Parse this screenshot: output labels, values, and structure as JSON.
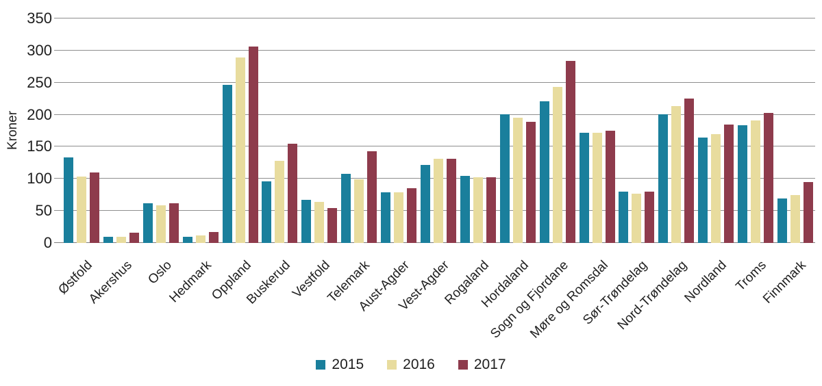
{
  "chart_data": {
    "type": "bar",
    "title": "",
    "xlabel": "",
    "ylabel": "Kroner",
    "ylim": [
      0,
      350
    ],
    "yticks": [
      0,
      50,
      100,
      150,
      200,
      250,
      300,
      350
    ],
    "grid": true,
    "legend_position": "bottom",
    "categories": [
      "Østfold",
      "Akershus",
      "Oslo",
      "Hedmark",
      "Oppland",
      "Buskerud",
      "Vestfold",
      "Telemark",
      "Aust-Agder",
      "Vest-Agder",
      "Rogaland",
      "Hordaland",
      "Sogn og Fjordane",
      "Møre og Romsdal",
      "Sør-Trøndelag",
      "Nord-Trøndelag",
      "Nordland",
      "Troms",
      "Finnmark"
    ],
    "series": [
      {
        "name": "2015",
        "color": "#1A7F9C",
        "values": [
          133,
          10,
          62,
          10,
          246,
          96,
          67,
          108,
          79,
          122,
          105,
          201,
          221,
          172,
          80,
          201,
          164,
          184,
          69
        ]
      },
      {
        "name": "2016",
        "color": "#E8DC9E",
        "values": [
          104,
          10,
          59,
          12,
          289,
          128,
          64,
          99,
          79,
          131,
          102,
          195,
          243,
          172,
          77,
          213,
          170,
          191,
          75
        ]
      },
      {
        "name": "2017",
        "color": "#8E3B4C",
        "values": [
          110,
          16,
          62,
          17,
          306,
          155,
          54,
          143,
          85,
          131,
          102,
          189,
          284,
          175,
          80,
          225,
          185,
          203,
          95
        ]
      }
    ]
  },
  "colors": {
    "gridline": "#8E8E8E",
    "axis_line": "#7D7D7D",
    "text": "#1F1F1F",
    "background": "#FFFFFF"
  }
}
